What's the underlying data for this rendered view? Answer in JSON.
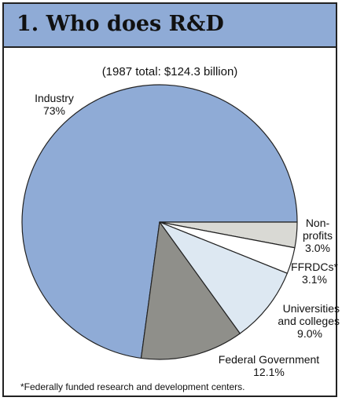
{
  "header": {
    "title": "1. Who does R&D"
  },
  "chart_data": {
    "type": "pie",
    "title": "",
    "subtitle": "(1987 total: $124.3 billion)",
    "unit": "percent",
    "slices": [
      {
        "name": "Industry",
        "label_lines": [
          "Industry"
        ],
        "value": 73.0,
        "value_label": "73%",
        "color": "#8fabd6"
      },
      {
        "name": "Non-profits",
        "label_lines": [
          "Non-",
          "profits"
        ],
        "value": 3.0,
        "value_label": "3.0%",
        "color": "#d9d9d4"
      },
      {
        "name": "FFRDCs*",
        "label_lines": [
          "FFRDCs*"
        ],
        "value": 3.1,
        "value_label": "3.1%",
        "color": "#ffffff"
      },
      {
        "name": "Universities and colleges",
        "label_lines": [
          "Universities",
          "and colleges"
        ],
        "value": 9.0,
        "value_label": "9.0%",
        "color": "#dde8f2"
      },
      {
        "name": "Federal Government",
        "label_lines": [
          "Federal Government"
        ],
        "value": 12.1,
        "value_label": "12.1%",
        "color": "#8f8f8a"
      }
    ],
    "footnote": "*Federally funded research and development centers."
  },
  "colors": {
    "header_background": "#8fabd6",
    "border": "#222222"
  }
}
